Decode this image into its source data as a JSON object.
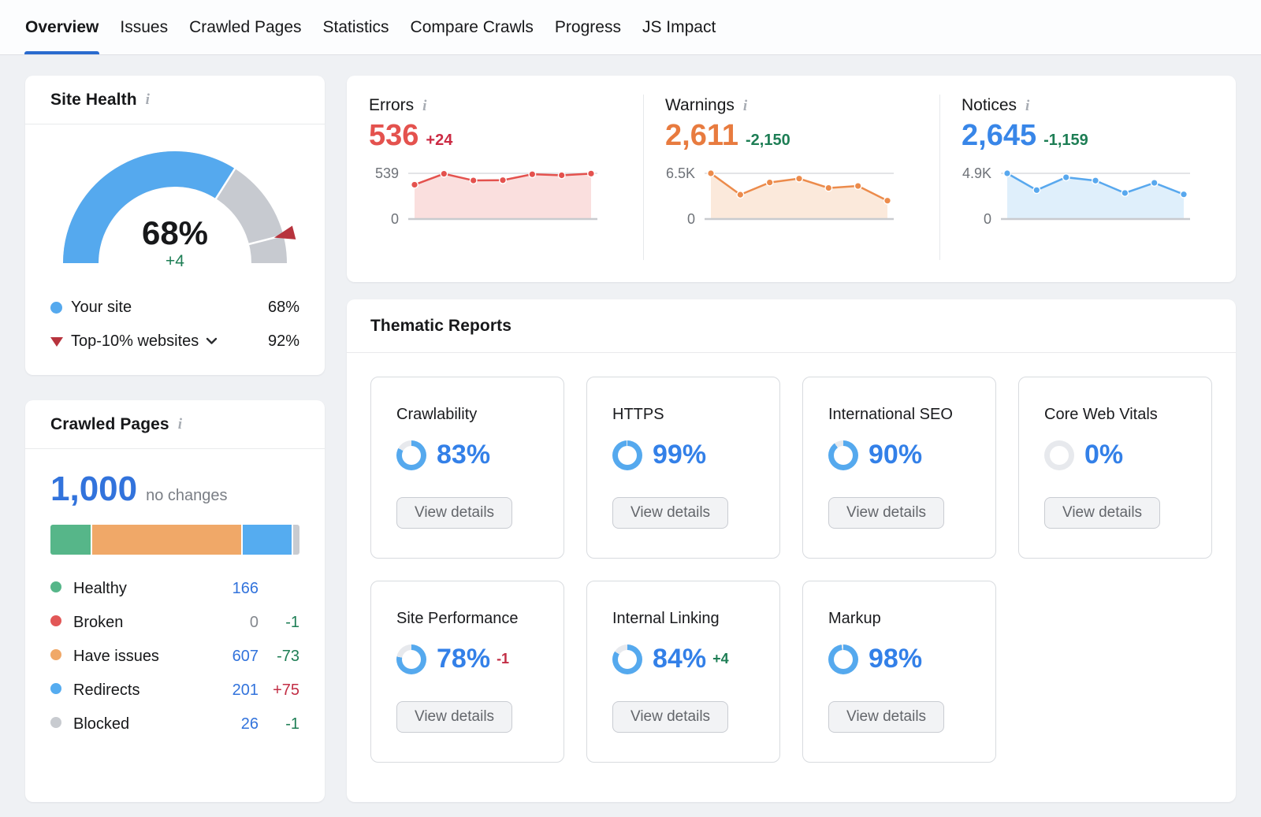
{
  "nav": {
    "tabs": [
      {
        "label": "Overview",
        "active": true
      },
      {
        "label": "Issues"
      },
      {
        "label": "Crawled Pages"
      },
      {
        "label": "Statistics"
      },
      {
        "label": "Compare Crawls"
      },
      {
        "label": "Progress"
      },
      {
        "label": "JS Impact"
      }
    ]
  },
  "colors": {
    "accent_blue": "#2A6BCE",
    "gauge_blue": "#55A9EE",
    "gauge_track": "#C7CAD0",
    "benchmark_red": "#B7333D",
    "donut_fill": "#55A9EE",
    "donut_track": "#E7E9ED",
    "green": "#1E7E55",
    "red": "#C22E45",
    "link_blue": "#3273DC",
    "muted": "#84888E",
    "text": "#17181A"
  },
  "site_health": {
    "title": "Site Health",
    "score": 68,
    "score_label": "68%",
    "change": "+4",
    "benchmark": 92,
    "legend": [
      {
        "label": "Your site",
        "value": "68%",
        "marker": "blue-dot"
      },
      {
        "label": "Top-10% websites",
        "value": "92%",
        "marker": "red-triangle"
      }
    ]
  },
  "crawled_pages": {
    "title": "Crawled Pages",
    "total": "1,000",
    "total_note": "no changes",
    "segments": [
      {
        "name": "healthy",
        "value": 166,
        "color": "#56B689"
      },
      {
        "name": "broken",
        "value": 0,
        "color": "#E25757"
      },
      {
        "name": "have-issues",
        "value": 607,
        "color": "#F0A868"
      },
      {
        "name": "redirects",
        "value": 201,
        "color": "#55ACF0"
      },
      {
        "name": "blocked",
        "value": 26,
        "color": "#C8CBD0"
      }
    ],
    "legend": [
      {
        "label": "Healthy",
        "value": "166",
        "value_color": "#3273DC",
        "change": "",
        "change_color": "#1E7E55",
        "dot": "#56B689"
      },
      {
        "label": "Broken",
        "value": "0",
        "value_color": "#84888E",
        "change": "-1",
        "change_color": "#1E7E55",
        "dot": "#E25757"
      },
      {
        "label": "Have issues",
        "value": "607",
        "value_color": "#3273DC",
        "change": "-73",
        "change_color": "#1E7E55",
        "dot": "#F0A868"
      },
      {
        "label": "Redirects",
        "value": "201",
        "value_color": "#3273DC",
        "change": "+75",
        "change_color": "#C22E45",
        "dot": "#55ACF0"
      },
      {
        "label": "Blocked",
        "value": "26",
        "value_color": "#3273DC",
        "change": "-1",
        "change_color": "#1E7E55",
        "dot": "#C8CBD0"
      }
    ]
  },
  "issue_stats": [
    {
      "title": "Errors",
      "value": "536",
      "value_color": "#E4524E",
      "change": "+24",
      "change_color": "#CC2B44",
      "axis_max": "539",
      "axis_min": "0",
      "axis_max_value": 539,
      "series": [
        405,
        534,
        455,
        458,
        528,
        516,
        536
      ],
      "line_color": "#E4524E",
      "fill_color": "#FADFDE"
    },
    {
      "title": "Warnings",
      "value": "2,611",
      "value_color": "#E87B3F",
      "change": "-2,150",
      "change_color": "#1E7E55",
      "axis_max": "6.5K",
      "axis_min": "0",
      "axis_max_value": 6500,
      "series": [
        6500,
        3460,
        5200,
        5750,
        4420,
        4700,
        2611
      ],
      "line_color": "#EC8B4B",
      "fill_color": "#FBE9DB"
    },
    {
      "title": "Notices",
      "value": "2,645",
      "value_color": "#3886E8",
      "change": "-1,159",
      "change_color": "#1E7E55",
      "axis_max": "4.9K",
      "axis_min": "0",
      "axis_max_value": 4900,
      "series": [
        4900,
        3100,
        4470,
        4120,
        2790,
        3880,
        2645
      ],
      "line_color": "#58A8EE",
      "fill_color": "#DFEFFB"
    }
  ],
  "thematic_reports": {
    "title": "Thematic Reports",
    "button_label": "View details",
    "cards": [
      {
        "title": "Crawlability",
        "percent": 83,
        "percent_label": "83%",
        "change": "",
        "change_color": ""
      },
      {
        "title": "HTTPS",
        "percent": 99,
        "percent_label": "99%",
        "change": "",
        "change_color": ""
      },
      {
        "title": "International SEO",
        "percent": 90,
        "percent_label": "90%",
        "change": "",
        "change_color": ""
      },
      {
        "title": "Core Web Vitals",
        "percent": 0,
        "percent_label": "0%",
        "change": "",
        "change_color": ""
      },
      {
        "title": "Site Performance",
        "percent": 78,
        "percent_label": "78%",
        "change": "-1",
        "change_color": "#C22E45"
      },
      {
        "title": "Internal Linking",
        "percent": 84,
        "percent_label": "84%",
        "change": "+4",
        "change_color": "#1E7E55"
      },
      {
        "title": "Markup",
        "percent": 98,
        "percent_label": "98%",
        "change": "",
        "change_color": ""
      }
    ]
  },
  "chart_data": [
    {
      "type": "gauge",
      "title": "Site Health",
      "value": 68,
      "benchmark": 92,
      "range": [
        0,
        100
      ],
      "unit": "%"
    },
    {
      "type": "line",
      "title": "Errors",
      "ylim": [
        0,
        539
      ],
      "x": [
        1,
        2,
        3,
        4,
        5,
        6,
        7
      ],
      "values": [
        405,
        534,
        455,
        458,
        528,
        516,
        536
      ],
      "current": 536,
      "change": 24
    },
    {
      "type": "line",
      "title": "Warnings",
      "ylim": [
        0,
        6500
      ],
      "x": [
        1,
        2,
        3,
        4,
        5,
        6,
        7
      ],
      "values": [
        6500,
        3460,
        5200,
        5750,
        4420,
        4700,
        2611
      ],
      "current": 2611,
      "change": -2150
    },
    {
      "type": "line",
      "title": "Notices",
      "ylim": [
        0,
        4900
      ],
      "x": [
        1,
        2,
        3,
        4,
        5,
        6,
        7
      ],
      "values": [
        4900,
        3100,
        4470,
        4120,
        2790,
        3880,
        2645
      ],
      "current": 2645,
      "change": -1159
    },
    {
      "type": "bar",
      "title": "Crawled Pages",
      "categories": [
        "Healthy",
        "Broken",
        "Have issues",
        "Redirects",
        "Blocked"
      ],
      "values": [
        166,
        0,
        607,
        201,
        26
      ],
      "total": 1000
    },
    {
      "type": "pie",
      "title": "Thematic Reports donuts",
      "categories": [
        "Crawlability",
        "HTTPS",
        "International SEO",
        "Core Web Vitals",
        "Site Performance",
        "Internal Linking",
        "Markup"
      ],
      "values": [
        83,
        99,
        90,
        0,
        78,
        84,
        98
      ],
      "unit": "%"
    }
  ]
}
